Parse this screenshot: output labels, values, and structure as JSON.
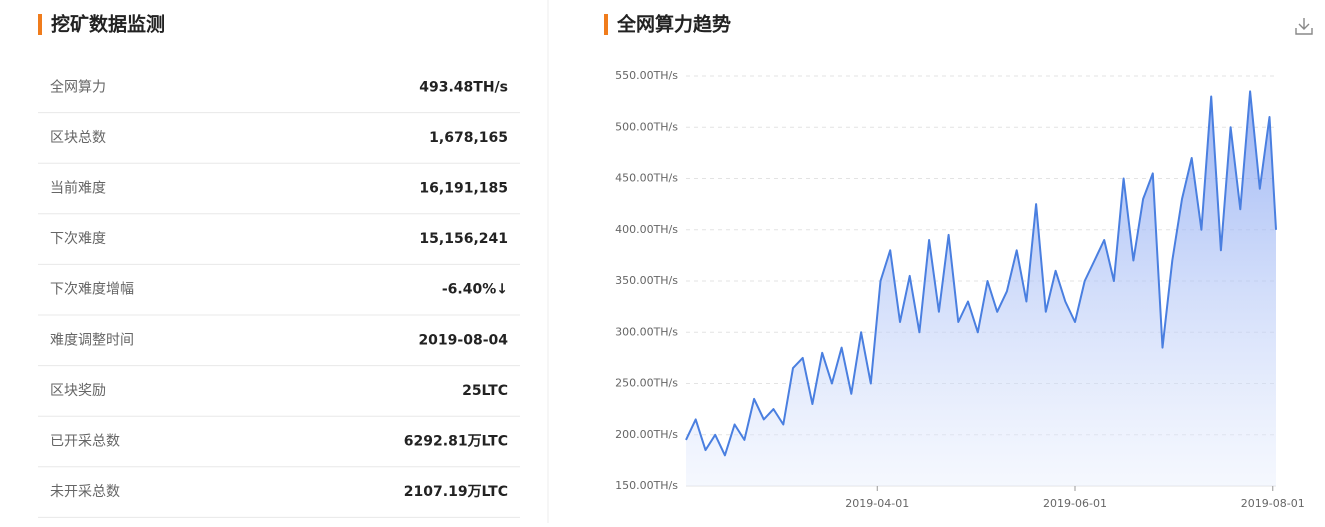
{
  "panel": {
    "title": "挖矿数据监测",
    "rows": [
      [
        "全网算力",
        "493.48TH/s"
      ],
      [
        "区块总数",
        "1,678,165"
      ],
      [
        "当前难度",
        "16,191,185"
      ],
      [
        "下次难度",
        "15,156,241"
      ],
      [
        "下次难度增幅",
        "-6.40%↓"
      ],
      [
        "难度调整时间",
        "2019-08-04"
      ],
      [
        "区块奖励",
        "25LTC"
      ],
      [
        "已开采总数",
        "6292.81万LTC"
      ],
      [
        "未开采总数",
        "2107.19万LTC"
      ]
    ]
  },
  "chart_data": {
    "type": "line",
    "title": "全网算力趋势",
    "x": [
      "2019-02-01",
      "2019-02-04",
      "2019-02-07",
      "2019-02-10",
      "2019-02-13",
      "2019-02-16",
      "2019-02-19",
      "2019-02-22",
      "2019-02-25",
      "2019-02-28",
      "2019-03-03",
      "2019-03-06",
      "2019-03-09",
      "2019-03-12",
      "2019-03-15",
      "2019-03-18",
      "2019-03-21",
      "2019-03-24",
      "2019-03-27",
      "2019-03-30",
      "2019-04-02",
      "2019-04-05",
      "2019-04-08",
      "2019-04-11",
      "2019-04-14",
      "2019-04-17",
      "2019-04-20",
      "2019-04-23",
      "2019-04-26",
      "2019-04-29",
      "2019-05-02",
      "2019-05-05",
      "2019-05-08",
      "2019-05-11",
      "2019-05-14",
      "2019-05-17",
      "2019-05-20",
      "2019-05-23",
      "2019-05-26",
      "2019-05-29",
      "2019-06-01",
      "2019-06-04",
      "2019-06-07",
      "2019-06-10",
      "2019-06-13",
      "2019-06-16",
      "2019-06-19",
      "2019-06-22",
      "2019-06-25",
      "2019-06-28",
      "2019-07-01",
      "2019-07-04",
      "2019-07-07",
      "2019-07-10",
      "2019-07-13",
      "2019-07-16",
      "2019-07-19",
      "2019-07-22",
      "2019-07-25",
      "2019-07-28",
      "2019-07-31",
      "2019-08-02"
    ],
    "series": [
      {
        "color": "#4a7fe0",
        "values": [
          195,
          215,
          185,
          200,
          180,
          210,
          195,
          235,
          215,
          225,
          210,
          265,
          275,
          230,
          280,
          250,
          285,
          240,
          300,
          250,
          350,
          380,
          310,
          355,
          300,
          390,
          320,
          395,
          310,
          330,
          300,
          350,
          320,
          340,
          380,
          330,
          425,
          320,
          360,
          330,
          310,
          350,
          370,
          390,
          350,
          450,
          370,
          430,
          455,
          285,
          370,
          430,
          470,
          400,
          530,
          380,
          500,
          420,
          535,
          440,
          510,
          400
        ]
      }
    ],
    "xlim": [
      "2019-02-01",
      "2019-08-02"
    ],
    "xticks": [
      "2019-04-01",
      "2019-06-01",
      "2019-08-01"
    ],
    "ylim": [
      150,
      550
    ],
    "yticks": [
      {
        "value": 150,
        "label": "150.00TH/s"
      },
      {
        "value": 200,
        "label": "200.00TH/s"
      },
      {
        "value": 250,
        "label": "250.00TH/s"
      },
      {
        "value": 300,
        "label": "300.00TH/s"
      },
      {
        "value": 350,
        "label": "350.00TH/s"
      },
      {
        "value": 400,
        "label": "400.00TH/s"
      },
      {
        "value": 450,
        "label": "450.00TH/s"
      },
      {
        "value": 500,
        "label": "500.00TH/s"
      },
      {
        "value": 550,
        "label": "550.00TH/s"
      }
    ],
    "grid": true
  }
}
